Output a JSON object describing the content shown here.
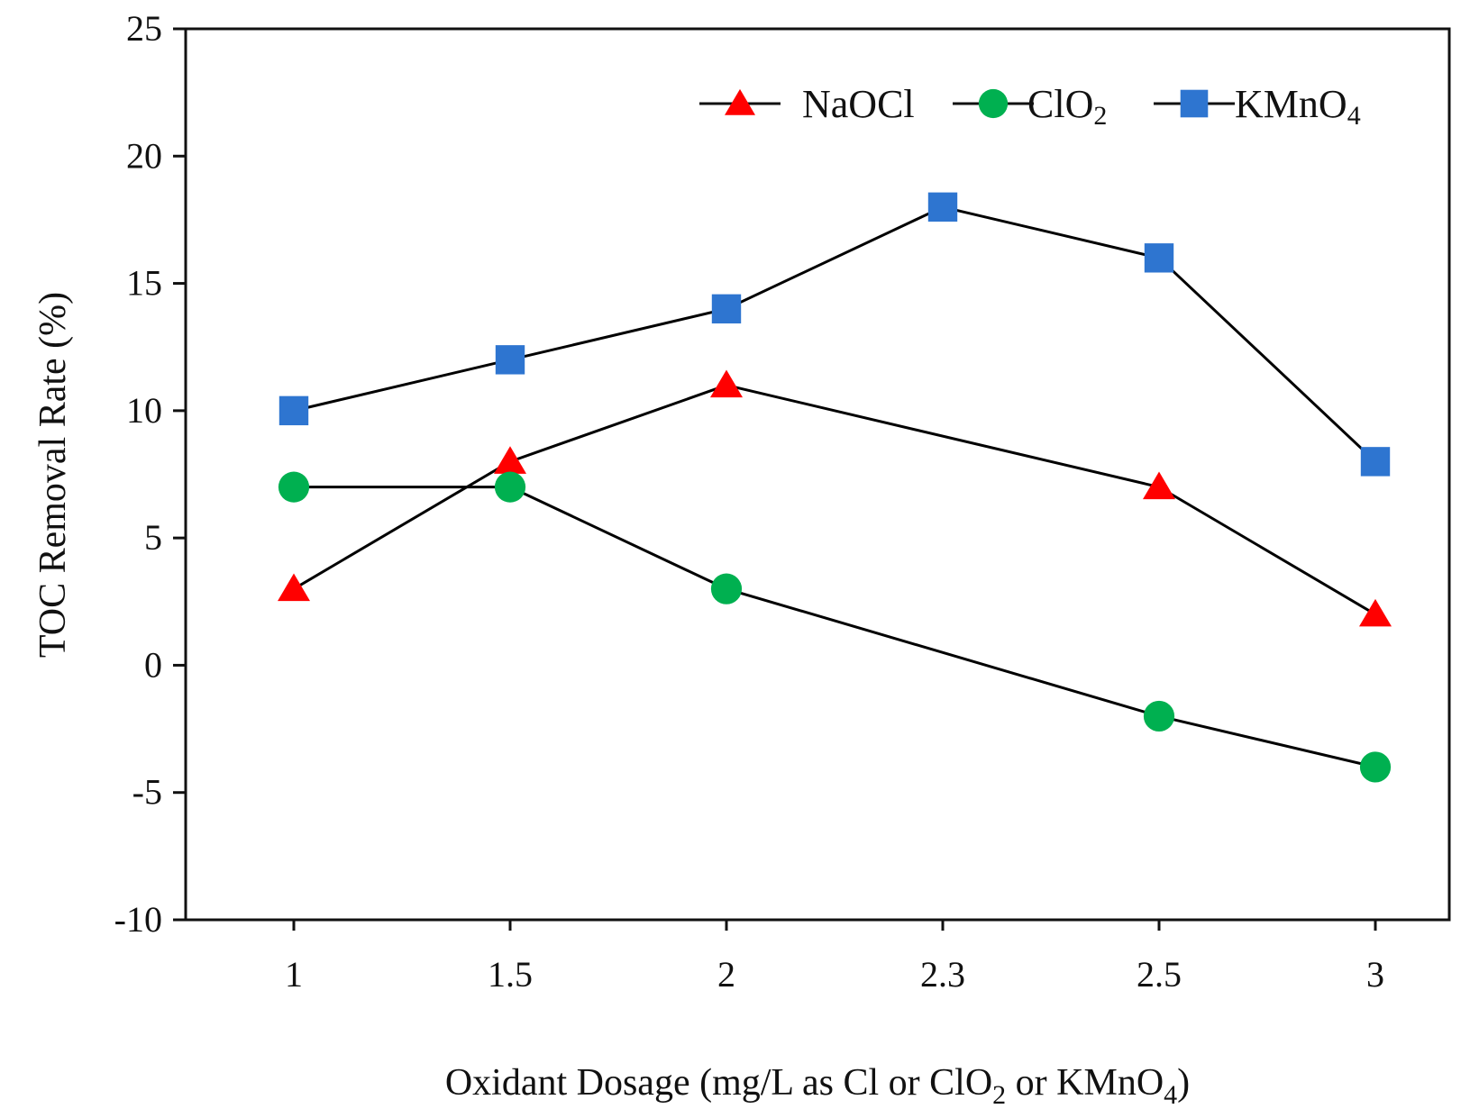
{
  "chart_data": {
    "type": "line",
    "title": "",
    "xlabel": "Oxidant Dosage (mg/L as Cl or ClO2 or KMnO4)",
    "xlabel_parts": {
      "prefix": "Oxidant Dosage (mg/L as Cl or ClO",
      "sub1": "2",
      "middle": " or KMnO",
      "sub2": "4",
      "suffix": ")"
    },
    "ylabel": "TOC Removal Rate (%)",
    "categories": [
      "1",
      "1.5",
      "2",
      "2.3",
      "2.5",
      "3"
    ],
    "ylim": [
      -10,
      25
    ],
    "yticks": [
      "25",
      "20",
      "15",
      "10",
      "5",
      "0",
      "-5",
      "-10"
    ],
    "ytick_values": [
      25,
      20,
      15,
      10,
      5,
      0,
      -5,
      -10
    ],
    "legend_position": "top-right",
    "series": [
      {
        "name": "NaOCl",
        "label_main": "NaOCl",
        "label_sub": "",
        "marker": "triangle",
        "color": "#ff0000",
        "line_color": "#000000",
        "values": [
          3,
          8,
          11,
          null,
          7,
          2
        ]
      },
      {
        "name": "ClO2",
        "label_main": "ClO",
        "label_sub": "2",
        "marker": "circle",
        "color": "#00b050",
        "line_color": "#000000",
        "values": [
          7,
          7,
          3,
          null,
          -2,
          -4
        ]
      },
      {
        "name": "KMnO4",
        "label_main": "KMnO",
        "label_sub": "4",
        "marker": "square",
        "color": "#2e75d0",
        "line_color": "#000000",
        "values": [
          10,
          12,
          14,
          18,
          16,
          8
        ]
      }
    ]
  }
}
